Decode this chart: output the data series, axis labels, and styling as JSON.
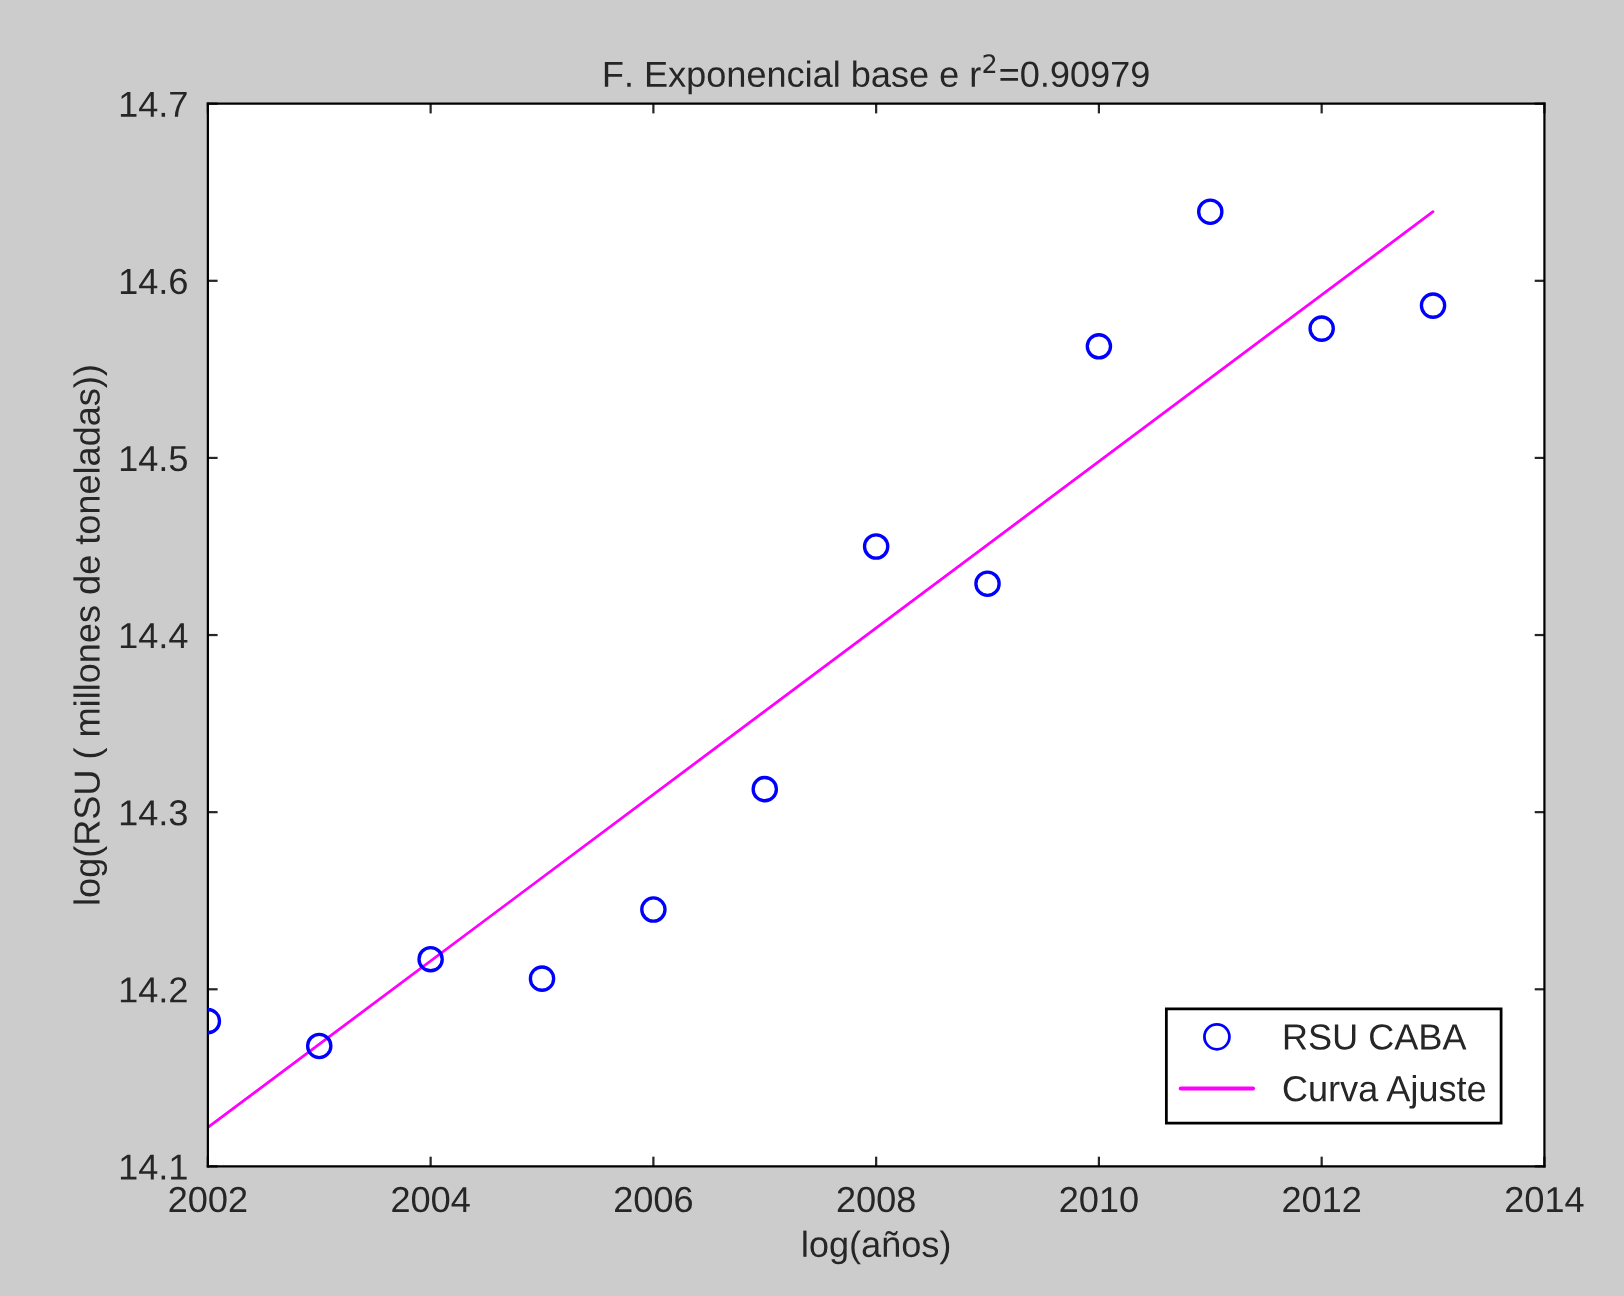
{
  "chart_data": {
    "type": "scatter",
    "title": "F. Exponencial base e r$^{2}$=0.90979",
    "xlabel": "log(años)",
    "ylabel": "log(RSU ( millones de toneladas))",
    "series": [
      {
        "name": "RSU CABA",
        "color": "#0000ff",
        "marker": "circle",
        "x": [
          2002,
          2003,
          2004,
          2005,
          2006,
          2007,
          2008,
          2009,
          2010,
          2011,
          2012,
          2013
        ],
        "values": [
          14.182,
          14.168,
          14.217,
          14.206,
          14.245,
          14.313,
          14.45,
          14.429,
          14.563,
          14.639,
          14.573,
          14.586
        ]
      },
      {
        "name": "Curva Ajuste",
        "type": "line",
        "color": "#ff00ff",
        "line_style": "solid",
        "x": [
          2002,
          2013
        ],
        "values": [
          14.122,
          14.639
        ]
      }
    ],
    "xlim": [
      2002,
      2014
    ],
    "xticks": [
      2002,
      2004,
      2006,
      2008,
      2010,
      2012,
      2014
    ],
    "ylim": [
      14.1,
      14.7
    ],
    "yticks": [
      14.1,
      14.2,
      14.3,
      14.4,
      14.5,
      14.6,
      14.7
    ],
    "grid": false,
    "legend": "bottom right"
  }
}
